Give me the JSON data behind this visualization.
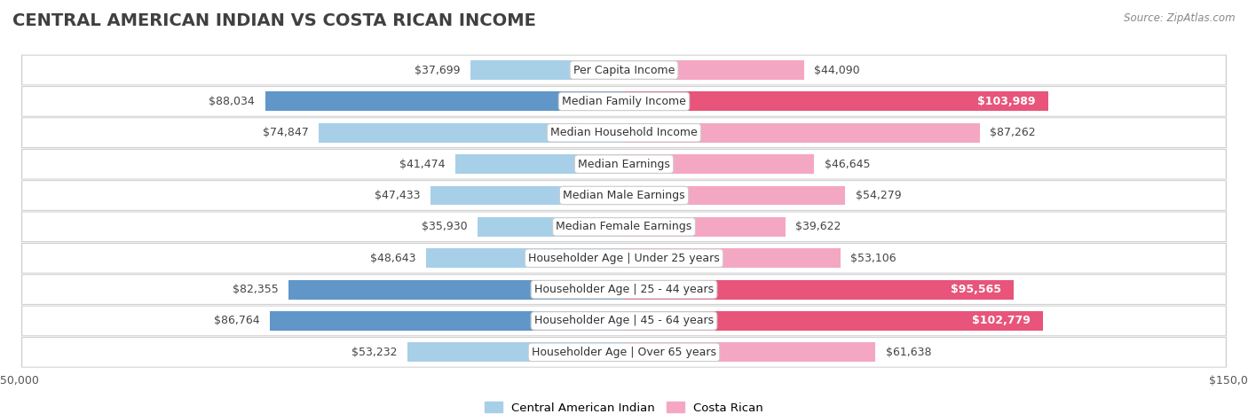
{
  "title": "CENTRAL AMERICAN INDIAN VS COSTA RICAN INCOME",
  "source": "Source: ZipAtlas.com",
  "categories": [
    "Per Capita Income",
    "Median Family Income",
    "Median Household Income",
    "Median Earnings",
    "Median Male Earnings",
    "Median Female Earnings",
    "Householder Age | Under 25 years",
    "Householder Age | 25 - 44 years",
    "Householder Age | 45 - 64 years",
    "Householder Age | Over 65 years"
  ],
  "central_american_indian": [
    37699,
    88034,
    74847,
    41474,
    47433,
    35930,
    48643,
    82355,
    86764,
    53232
  ],
  "costa_rican": [
    44090,
    103989,
    87262,
    46645,
    54279,
    39622,
    53106,
    95565,
    102779,
    61638
  ],
  "color_cai_light": "#a8cfe8",
  "color_cr_light": "#f4a7c3",
  "color_cai_dark": "#6196c8",
  "color_cr_dark": "#e8547a",
  "dark_rows": [
    1,
    7,
    8
  ],
  "xlim": 150000,
  "bg_color": "#ffffff",
  "row_bg_color": "#f7f7f7",
  "bar_height": 0.62,
  "label_fontsize": 9,
  "title_fontsize": 14,
  "legend_cai": "Central American Indian",
  "legend_cr": "Costa Rican"
}
